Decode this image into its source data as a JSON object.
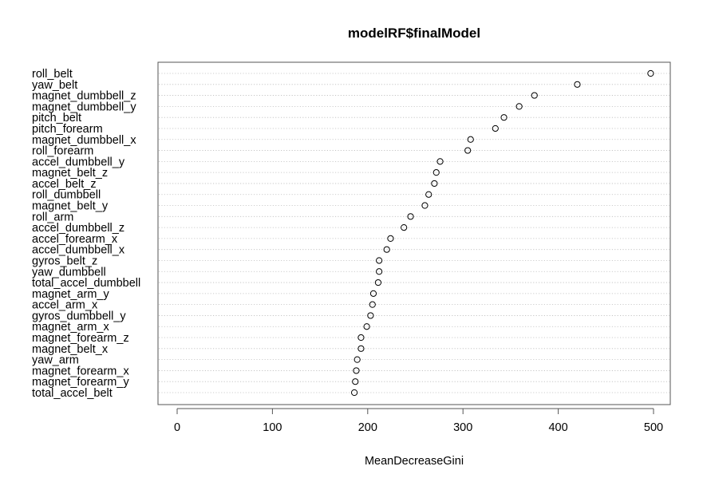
{
  "chart_data": {
    "type": "scatter",
    "subtype": "dotchart",
    "title": "modelRF$finalModel",
    "xlabel": "MeanDecreaseGini",
    "ylabel": "",
    "xlim": [
      0,
      500
    ],
    "xticks": [
      0,
      100,
      200,
      300,
      400,
      500
    ],
    "grid": "dotted horizontal guide lines",
    "marker": "open circle",
    "items": [
      {
        "label": "roll_belt",
        "value": 497
      },
      {
        "label": "yaw_belt",
        "value": 420
      },
      {
        "label": "magnet_dumbbell_z",
        "value": 375
      },
      {
        "label": "magnet_dumbbell_y",
        "value": 359
      },
      {
        "label": "pitch_belt",
        "value": 343
      },
      {
        "label": "pitch_forearm",
        "value": 334
      },
      {
        "label": "magnet_dumbbell_x",
        "value": 308
      },
      {
        "label": "roll_forearm",
        "value": 305
      },
      {
        "label": "accel_dumbbell_y",
        "value": 276
      },
      {
        "label": "magnet_belt_z",
        "value": 272
      },
      {
        "label": "accel_belt_z",
        "value": 270
      },
      {
        "label": "roll_dumbbell",
        "value": 264
      },
      {
        "label": "magnet_belt_y",
        "value": 260
      },
      {
        "label": "roll_arm",
        "value": 245
      },
      {
        "label": "accel_dumbbell_z",
        "value": 238
      },
      {
        "label": "accel_forearm_x",
        "value": 224
      },
      {
        "label": "accel_dumbbell_x",
        "value": 220
      },
      {
        "label": "gyros_belt_z",
        "value": 212
      },
      {
        "label": "yaw_dumbbell",
        "value": 212
      },
      {
        "label": "total_accel_dumbbell",
        "value": 211
      },
      {
        "label": "magnet_arm_y",
        "value": 206
      },
      {
        "label": "accel_arm_x",
        "value": 205
      },
      {
        "label": "gyros_dumbbell_y",
        "value": 203
      },
      {
        "label": "magnet_arm_x",
        "value": 199
      },
      {
        "label": "magnet_forearm_z",
        "value": 193
      },
      {
        "label": "magnet_belt_x",
        "value": 193
      },
      {
        "label": "yaw_arm",
        "value": 189
      },
      {
        "label": "magnet_forearm_x",
        "value": 188
      },
      {
        "label": "magnet_forearm_y",
        "value": 187
      },
      {
        "label": "total_accel_belt",
        "value": 186
      }
    ]
  }
}
